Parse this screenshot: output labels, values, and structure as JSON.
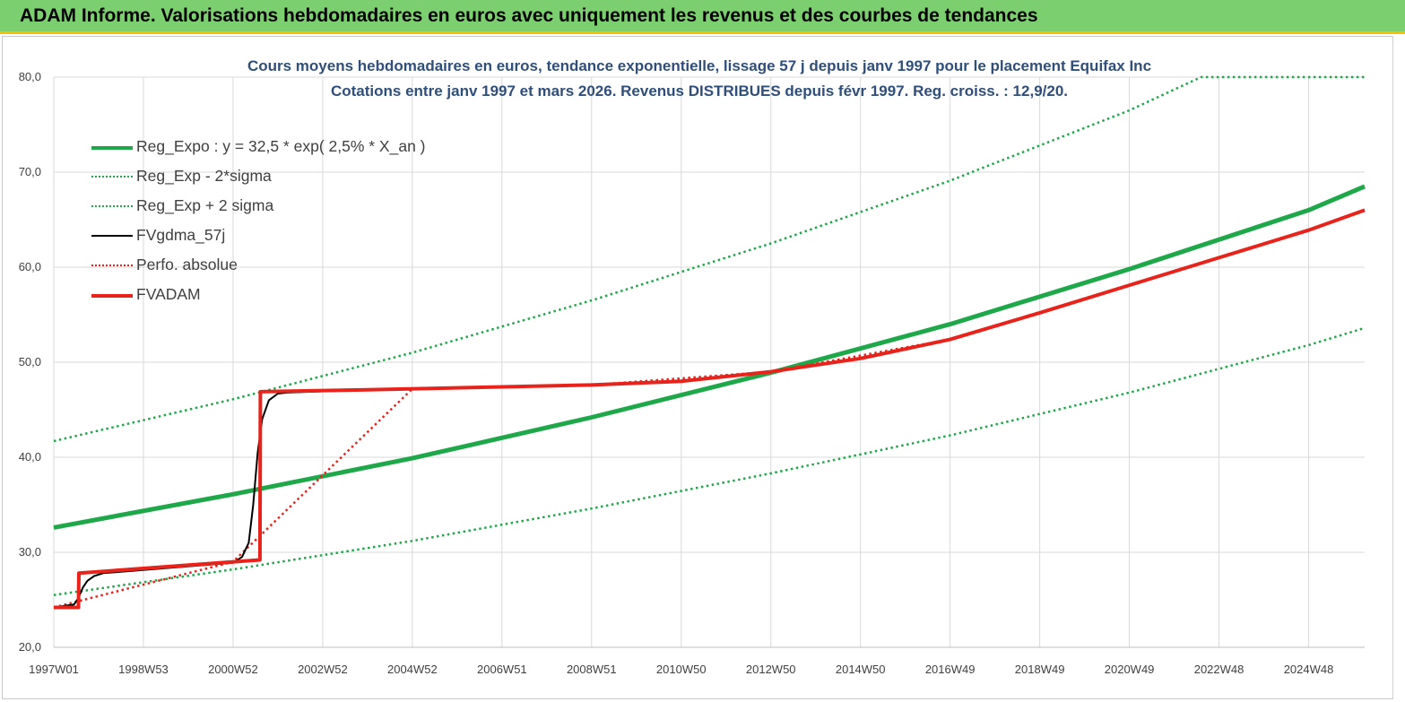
{
  "header": {
    "title": "ADAM Informe. Valorisations hebdomadaires en euros avec uniquement les revenus et des courbes de tendances"
  },
  "colors": {
    "header_bg": "#7ccf6e",
    "header_border": "#f2c200",
    "green": "#1fa84a",
    "red": "#e8231b",
    "black": "#000000",
    "title": "#2f4f7a"
  },
  "chart_data": {
    "type": "line",
    "title": "Cours moyens hebdomadaires en euros, tendance exponentielle, lissage 57 j depuis janv 1997 pour le placement Equifax Inc",
    "subtitle": "Cotations entre janv 1997 et mars 2026. Revenus DISTRIBUES depuis févr 1997. Reg. croiss. : 12,9/20.",
    "xlabel": "",
    "ylabel": "",
    "ylim": [
      20,
      80
    ],
    "xlim": [
      1997.0,
      2026.25
    ],
    "grid": true,
    "legend_position": "top-left",
    "y_ticks": [
      "20,0",
      "30,0",
      "40,0",
      "50,0",
      "60,0",
      "70,0",
      "80,0"
    ],
    "x_ticks": [
      {
        "label": "1997W01",
        "x": 1997.0
      },
      {
        "label": "1998W53",
        "x": 1999.0
      },
      {
        "label": "2000W52",
        "x": 2001.0
      },
      {
        "label": "2002W52",
        "x": 2003.0
      },
      {
        "label": "2004W52",
        "x": 2005.0
      },
      {
        "label": "2006W51",
        "x": 2007.0
      },
      {
        "label": "2008W51",
        "x": 2009.0
      },
      {
        "label": "2010W50",
        "x": 2011.0
      },
      {
        "label": "2012W50",
        "x": 2013.0
      },
      {
        "label": "2014W50",
        "x": 2015.0
      },
      {
        "label": "2016W49",
        "x": 2017.0
      },
      {
        "label": "2018W49",
        "x": 2019.0
      },
      {
        "label": "2020W49",
        "x": 2021.0
      },
      {
        "label": "2022W48",
        "x": 2023.0
      },
      {
        "label": "2024W48",
        "x": 2025.0
      }
    ],
    "series": [
      {
        "name": "Reg_Expo : y = 32,5 * exp( 2,5% *  X_an )",
        "style": "solid-thick",
        "color": "#1fa84a",
        "x": [
          1997.0,
          2001.0,
          2005.0,
          2009.0,
          2013.0,
          2017.0,
          2021.0,
          2025.0,
          2026.25
        ],
        "y": [
          32.6,
          36.1,
          39.9,
          44.2,
          48.9,
          54.0,
          59.8,
          66.0,
          68.5
        ]
      },
      {
        "name": "Reg_Exp - 2*sigma",
        "style": "dotted",
        "color": "#1fa84a",
        "x": [
          1997.0,
          2001.0,
          2005.0,
          2009.0,
          2013.0,
          2017.0,
          2021.0,
          2025.0,
          2026.25
        ],
        "y": [
          25.5,
          28.2,
          31.2,
          34.6,
          38.3,
          42.3,
          46.8,
          51.8,
          53.6
        ]
      },
      {
        "name": "Reg_Exp + 2 sigma",
        "style": "dotted",
        "color": "#1fa84a",
        "x": [
          1997.0,
          2001.0,
          2005.0,
          2009.0,
          2013.0,
          2017.0,
          2021.0,
          2022.6,
          2026.25
        ],
        "y": [
          41.7,
          46.1,
          51.0,
          56.5,
          62.5,
          69.1,
          76.5,
          80.0,
          80.0
        ]
      },
      {
        "name": "FVgdma_57j",
        "style": "solid",
        "color": "#000000",
        "x": [
          1997.0,
          1997.45,
          1997.55,
          1997.65,
          1997.75,
          1997.9,
          1998.1,
          2001.0,
          2001.2,
          2001.35,
          2001.45,
          2001.55,
          2001.65,
          2001.8,
          2002.0,
          2002.2,
          2004.0,
          2009.0,
          2011.0,
          2013.0,
          2015.0,
          2017.0,
          2019.0,
          2021.0,
          2023.0,
          2025.0,
          2026.25
        ],
        "y": [
          24.2,
          24.5,
          25.2,
          26.3,
          27.0,
          27.5,
          27.8,
          28.9,
          29.5,
          31.0,
          35.0,
          40.5,
          44.0,
          46.0,
          46.7,
          46.8,
          47.1,
          47.6,
          48.0,
          49.0,
          50.4,
          52.4,
          55.2,
          58.1,
          61.0,
          63.9,
          66.0
        ]
      },
      {
        "name": "Perfo. absolue",
        "style": "dotted",
        "color": "#e8231b",
        "x": [
          1997.0,
          2001.0,
          2005.0,
          2009.0,
          2013.0,
          2017.0,
          2021.0,
          2025.0,
          2026.25
        ],
        "y": [
          24.2,
          29.0,
          47.2,
          47.6,
          49.0,
          52.4,
          58.1,
          63.9,
          66.0
        ]
      },
      {
        "name": "FVADAM",
        "style": "solid-thick",
        "color": "#e8231b",
        "x": [
          1997.0,
          1997.55,
          1997.56,
          2001.6,
          2001.61,
          2004.0,
          2009.0,
          2011.0,
          2013.0,
          2015.0,
          2017.0,
          2019.0,
          2021.0,
          2023.0,
          2025.0,
          2026.25
        ],
        "y": [
          24.2,
          24.2,
          27.8,
          29.2,
          46.9,
          47.1,
          47.6,
          48.0,
          49.0,
          50.4,
          52.4,
          55.2,
          58.1,
          61.0,
          63.9,
          66.0
        ]
      }
    ]
  }
}
